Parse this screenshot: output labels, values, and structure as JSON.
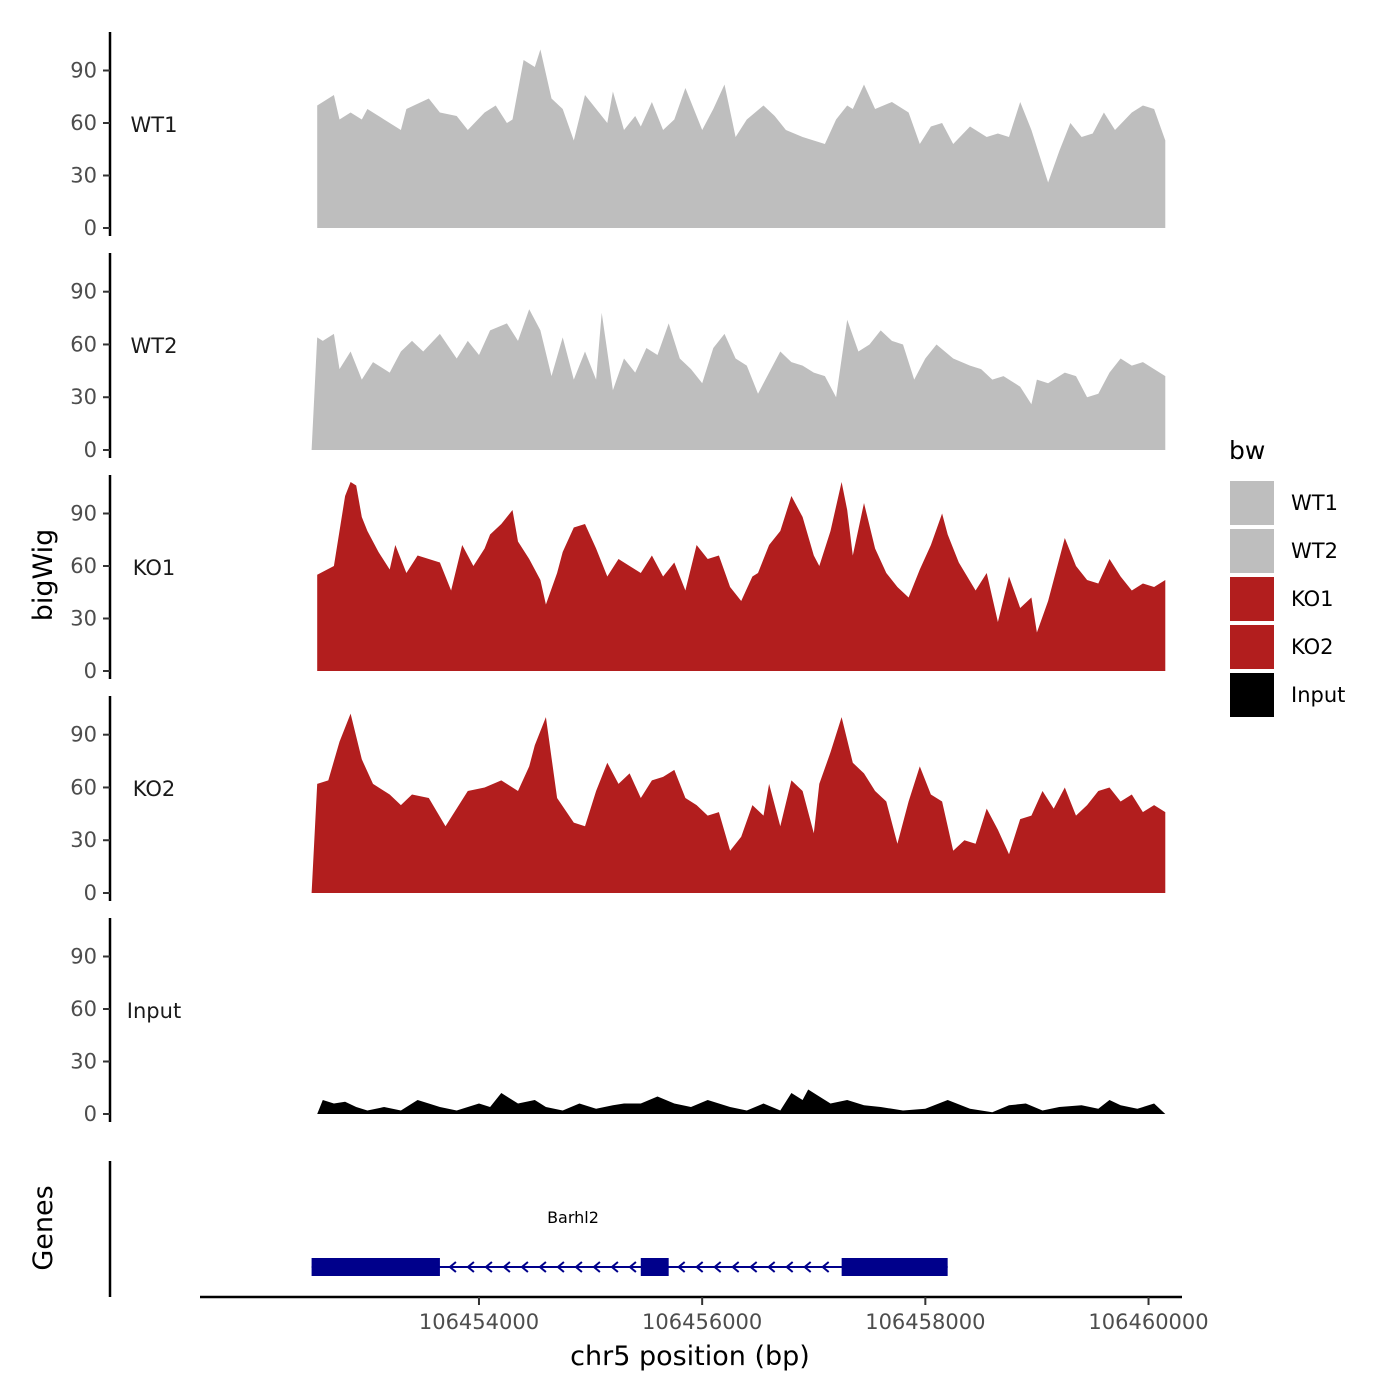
{
  "chart_data": {
    "type": "area",
    "ylabel": "bigWig",
    "xlabel": "chr5 position (bp)",
    "ylim": [
      0,
      112
    ],
    "yticks": [
      0,
      30,
      60,
      90
    ],
    "xlim": [
      106451500,
      106460300
    ],
    "xticks": [
      106454000,
      106456000,
      106458000,
      106460000
    ],
    "xtick_labels": [
      "106454000",
      "106456000",
      "106458000",
      "106460000"
    ],
    "gene_track_label": "Genes",
    "legend": {
      "title": "bw",
      "items": [
        {
          "label": "WT1",
          "color": "#bebebe"
        },
        {
          "label": "WT2",
          "color": "#bebebe"
        },
        {
          "label": "KO1",
          "color": "#b21e1e"
        },
        {
          "label": "KO2",
          "color": "#b21e1e"
        },
        {
          "label": "Input",
          "color": "#000000"
        }
      ]
    },
    "tracks": [
      {
        "name": "WT1",
        "color": "#bebebe",
        "x": [
          106452550,
          106452600,
          106452700,
          106452750,
          106452850,
          106452950,
          106453000,
          106453150,
          106453300,
          106453350,
          106453550,
          106453650,
          106453800,
          106453900,
          106454050,
          106454150,
          106454250,
          106454300,
          106454400,
          106454500,
          106454550,
          106454650,
          106454750,
          106454850,
          106454950,
          106455000,
          106455150,
          106455200,
          106455300,
          106455400,
          106455450,
          106455550,
          106455650,
          106455750,
          106455850,
          106456000,
          106456100,
          106456200,
          106456300,
          106456400,
          106456550,
          106456650,
          106456750,
          106456900,
          106457100,
          106457200,
          106457300,
          106457350,
          106457450,
          106457550,
          106457700,
          106457850,
          106457950,
          106458050,
          106458150,
          106458250,
          106458400,
          106458550,
          106458650,
          106458750,
          106458850,
          106458950,
          106459100,
          106459200,
          106459300,
          106459400,
          106459500,
          106459600,
          106459700,
          106459850,
          106459950,
          106460050,
          106460150
        ],
        "y": [
          70,
          72,
          76,
          62,
          66,
          62,
          68,
          62,
          56,
          68,
          74,
          66,
          64,
          56,
          66,
          70,
          60,
          62,
          96,
          92,
          102,
          74,
          68,
          50,
          76,
          72,
          60,
          78,
          56,
          64,
          58,
          72,
          56,
          62,
          80,
          56,
          68,
          82,
          52,
          62,
          70,
          64,
          56,
          52,
          48,
          62,
          70,
          68,
          82,
          68,
          72,
          66,
          48,
          58,
          60,
          48,
          58,
          52,
          54,
          52,
          72,
          56,
          26,
          44,
          60,
          52,
          54,
          66,
          56,
          66,
          70,
          68,
          50
        ]
      },
      {
        "name": "WT2",
        "color": "#bebebe",
        "x": [
          106452500,
          106452550,
          106452600,
          106452700,
          106452750,
          106452850,
          106452950,
          106453050,
          106453200,
          106453300,
          106453400,
          106453500,
          106453650,
          106453800,
          106453900,
          106454000,
          106454100,
          106454250,
          106454350,
          106454450,
          106454550,
          106454650,
          106454750,
          106454850,
          106454950,
          106455050,
          106455100,
          106455200,
          106455300,
          106455400,
          106455500,
          106455600,
          106455700,
          106455800,
          106455900,
          106456000,
          106456100,
          106456200,
          106456300,
          106456400,
          106456500,
          106456600,
          106456700,
          106456800,
          106456900,
          106457000,
          106457100,
          106457200,
          106457300,
          106457400,
          106457500,
          106457600,
          106457700,
          106457800,
          106457900,
          106458000,
          106458100,
          106458250,
          106458400,
          106458500,
          106458600,
          106458700,
          106458850,
          106458950,
          106459000,
          106459100,
          106459250,
          106459350,
          106459450,
          106459550,
          106459650,
          106459750,
          106459850,
          106459950,
          106460050,
          106460150
        ],
        "y": [
          0,
          64,
          62,
          66,
          46,
          56,
          40,
          50,
          44,
          56,
          62,
          56,
          66,
          52,
          62,
          54,
          68,
          72,
          62,
          80,
          68,
          42,
          64,
          40,
          56,
          40,
          78,
          34,
          52,
          44,
          58,
          54,
          72,
          52,
          46,
          38,
          58,
          66,
          52,
          48,
          32,
          44,
          56,
          50,
          48,
          44,
          42,
          30,
          74,
          56,
          60,
          68,
          62,
          60,
          40,
          52,
          60,
          52,
          48,
          46,
          40,
          42,
          36,
          26,
          40,
          38,
          44,
          42,
          30,
          32,
          44,
          52,
          48,
          50,
          46,
          42
        ]
      },
      {
        "name": "KO1",
        "color": "#b21e1e",
        "x": [
          106452550,
          106452700,
          106452750,
          106452800,
          106452850,
          106452900,
          106452950,
          106453000,
          106453100,
          106453200,
          106453250,
          106453350,
          106453450,
          106453550,
          106453650,
          106453750,
          106453850,
          106453950,
          106454050,
          106454100,
          106454200,
          106454300,
          106454350,
          106454450,
          106454550,
          106454600,
          106454700,
          106454750,
          106454850,
          106454950,
          106455050,
          106455150,
          106455250,
          106455350,
          106455450,
          106455550,
          106455650,
          106455750,
          106455850,
          106455950,
          106456050,
          106456150,
          106456250,
          106456350,
          106456450,
          106456500,
          106456600,
          106456700,
          106456800,
          106456900,
          106457000,
          106457050,
          106457150,
          106457250,
          106457300,
          106457350,
          106457450,
          106457550,
          106457650,
          106457750,
          106457850,
          106457950,
          106458050,
          106458150,
          106458200,
          106458300,
          106458450,
          106458550,
          106458650,
          106458750,
          106458850,
          106458950,
          106459000,
          106459100,
          106459250,
          106459350,
          106459450,
          106459550,
          106459650,
          106459750,
          106459850,
          106459950,
          106460050,
          106460150
        ],
        "y": [
          55,
          60,
          80,
          100,
          108,
          106,
          88,
          80,
          68,
          58,
          72,
          56,
          66,
          64,
          62,
          46,
          72,
          60,
          70,
          78,
          84,
          92,
          74,
          64,
          52,
          38,
          56,
          68,
          82,
          84,
          70,
          54,
          64,
          60,
          56,
          66,
          54,
          62,
          46,
          72,
          64,
          66,
          48,
          40,
          54,
          56,
          72,
          80,
          100,
          88,
          66,
          60,
          80,
          108,
          92,
          66,
          96,
          70,
          56,
          48,
          42,
          58,
          72,
          90,
          78,
          62,
          46,
          56,
          28,
          54,
          36,
          42,
          22,
          40,
          76,
          60,
          52,
          50,
          64,
          54,
          46,
          50,
          48,
          52
        ]
      },
      {
        "name": "KO2",
        "color": "#b21e1e",
        "x": [
          106452500,
          106452550,
          106452650,
          106452750,
          106452850,
          106452950,
          106453050,
          106453200,
          106453300,
          106453400,
          106453550,
          106453700,
          106453900,
          106454050,
          106454200,
          106454350,
          106454450,
          106454500,
          106454600,
          106454700,
          106454850,
          106454950,
          106455050,
          106455150,
          106455250,
          106455350,
          106455450,
          106455550,
          106455650,
          106455750,
          106455850,
          106455950,
          106456050,
          106456150,
          106456250,
          106456350,
          106456450,
          106456550,
          106456600,
          106456700,
          106456800,
          106456900,
          106457000,
          106457050,
          106457150,
          106457250,
          106457350,
          106457450,
          106457550,
          106457650,
          106457750,
          106457850,
          106457950,
          106458050,
          106458150,
          106458250,
          106458350,
          106458450,
          106458550,
          106458650,
          106458750,
          106458850,
          106458950,
          106459050,
          106459150,
          106459250,
          106459350,
          106459450,
          106459550,
          106459650,
          106459750,
          106459850,
          106459950,
          106460050,
          106460150
        ],
        "y": [
          0,
          62,
          64,
          86,
          102,
          76,
          62,
          56,
          50,
          56,
          54,
          38,
          58,
          60,
          64,
          58,
          72,
          84,
          100,
          54,
          40,
          38,
          58,
          74,
          62,
          68,
          54,
          64,
          66,
          70,
          54,
          50,
          44,
          46,
          24,
          32,
          50,
          44,
          62,
          38,
          64,
          58,
          34,
          62,
          80,
          100,
          74,
          68,
          58,
          52,
          28,
          52,
          72,
          56,
          52,
          24,
          30,
          28,
          48,
          36,
          22,
          42,
          44,
          58,
          48,
          60,
          44,
          50,
          58,
          60,
          52,
          56,
          46,
          50,
          46
        ]
      },
      {
        "name": "Input",
        "color": "#000000",
        "x": [
          106452550,
          106452600,
          106452700,
          106452800,
          106452900,
          106453000,
          106453150,
          106453300,
          106453450,
          106453550,
          106453650,
          106453800,
          106454000,
          106454100,
          106454200,
          106454350,
          106454500,
          106454600,
          106454750,
          106454900,
          106455050,
          106455200,
          106455300,
          106455450,
          106455600,
          106455750,
          106455900,
          106456050,
          106456250,
          106456400,
          106456550,
          106456700,
          106456800,
          106456900,
          106456950,
          106457050,
          106457150,
          106457300,
          106457450,
          106457600,
          106457800,
          106458000,
          106458200,
          106458400,
          106458600,
          106458750,
          106458900,
          106459050,
          106459200,
          106459400,
          106459550,
          106459650,
          106459750,
          106459900,
          106460050,
          106460150
        ],
        "y": [
          0,
          8,
          6,
          7,
          4,
          2,
          4,
          2,
          8,
          6,
          4,
          2,
          6,
          4,
          12,
          6,
          8,
          4,
          2,
          6,
          3,
          5,
          6,
          6,
          10,
          6,
          4,
          8,
          4,
          2,
          6,
          2,
          12,
          8,
          14,
          10,
          6,
          8,
          5,
          4,
          2,
          3,
          8,
          3,
          1,
          5,
          6,
          2,
          4,
          5,
          3,
          8,
          5,
          3,
          6,
          0
        ]
      }
    ],
    "gene": {
      "name": "Barhl2",
      "strand": "-",
      "start": 106452500,
      "end": 106458200,
      "exons": [
        [
          106452500,
          106453650
        ],
        [
          106455450,
          106455700
        ],
        [
          106457250,
          106458200
        ]
      ]
    }
  }
}
